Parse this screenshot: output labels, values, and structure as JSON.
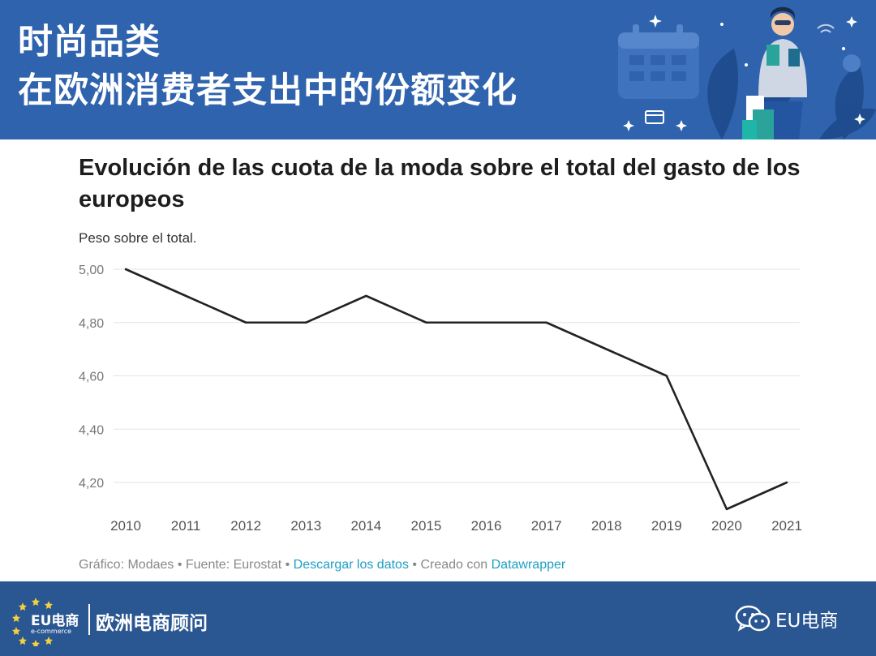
{
  "header": {
    "title_line1": "时尚品类",
    "title_line2": "在欧洲消费者支出中的份额变化",
    "bg_color": "#2f63ad"
  },
  "chart_data": {
    "type": "line",
    "title": "Evolución de las cuota de la moda sobre el total del gasto de los europeos",
    "subtitle": "Peso sobre el total.",
    "x": [
      "2010",
      "2011",
      "2012",
      "2013",
      "2014",
      "2015",
      "2016",
      "2017",
      "2018",
      "2019",
      "2020",
      "2021"
    ],
    "series": [
      {
        "values": [
          5.0,
          4.9,
          4.8,
          4.8,
          4.9,
          4.8,
          4.8,
          4.8,
          4.7,
          4.6,
          4.1,
          4.2
        ]
      }
    ],
    "yticks": [
      4.2,
      4.4,
      4.6,
      4.8,
      5.0
    ],
    "ytick_labels": [
      "4,20",
      "4,40",
      "4,60",
      "4,80",
      "5,00"
    ],
    "ylim": [
      4.1,
      5.0
    ],
    "grid": true,
    "line_color": "#222222"
  },
  "footer": {
    "credit": "Gráfico: Modaes • Fuente: Eurostat • ",
    "download_link": "Descargar los datos",
    "created_with": " • Creado con ",
    "tool_link": "Datawrapper"
  },
  "bottom_bar": {
    "logo_text": "EU电商",
    "logo_sub": "e-commerce",
    "brand_name": "欧洲电商顾问",
    "wechat_label": "EU电商",
    "bg_color": "#2a5792"
  },
  "icons": [
    "calendar-icon",
    "shopping-woman-illustration",
    "wechat-icon",
    "eu-stars-icon"
  ]
}
